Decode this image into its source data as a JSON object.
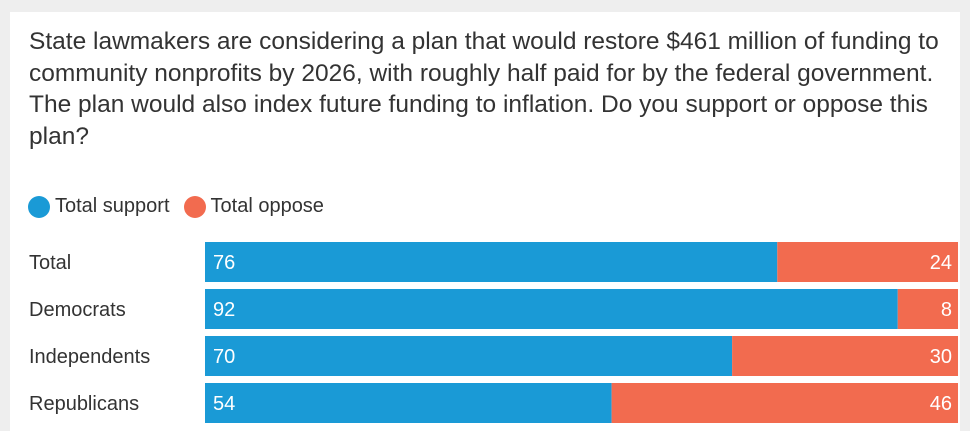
{
  "question": "State lawmakers are considering a plan that would restore $461 million of funding to community nonprofits by 2026, with roughly half paid for by the federal government. The plan would also index future funding to inflation. Do you support or oppose this plan?",
  "legend": [
    {
      "label": "Total support",
      "color": "#1a9ad6"
    },
    {
      "label": "Total oppose",
      "color": "#f26b4f"
    }
  ],
  "chart_data": {
    "type": "bar",
    "orientation": "horizontal",
    "stacked": true,
    "categories": [
      "Total",
      "Democrats",
      "Independents",
      "Republicans"
    ],
    "series": [
      {
        "name": "Total support",
        "values": [
          76,
          92,
          70,
          54
        ],
        "color": "#1a9ad6"
      },
      {
        "name": "Total oppose",
        "values": [
          24,
          8,
          30,
          46
        ],
        "color": "#f26b4f"
      }
    ],
    "xlim": [
      0,
      100
    ],
    "legend": "top-left",
    "grid": false
  }
}
